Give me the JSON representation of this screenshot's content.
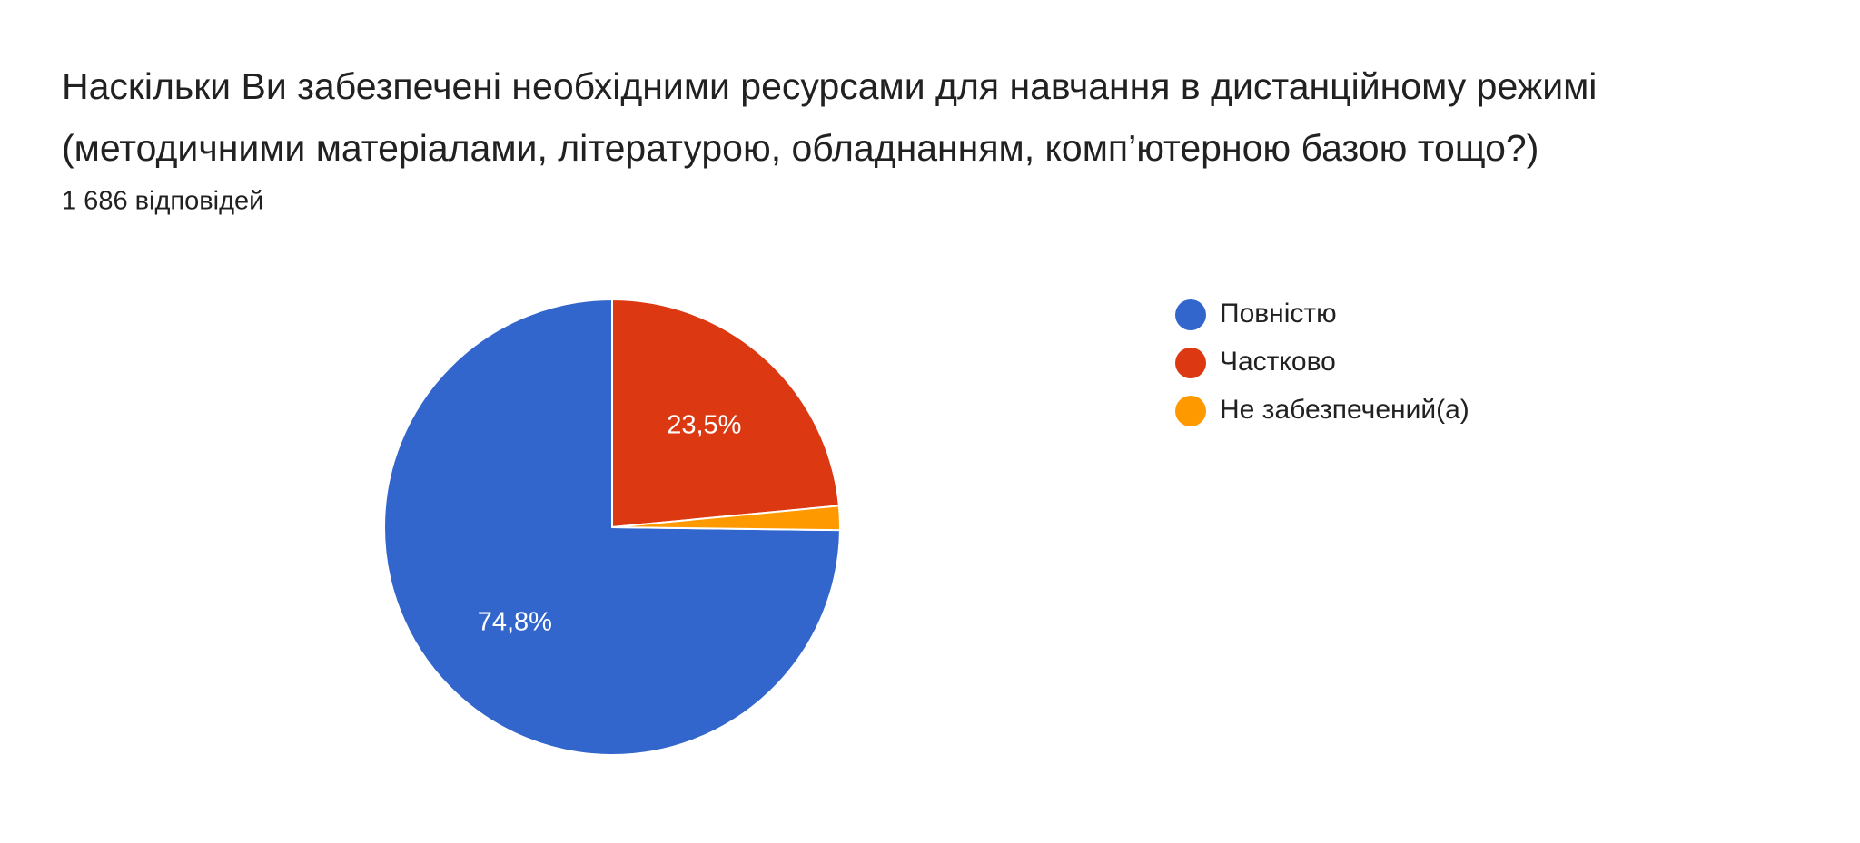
{
  "chart_data": {
    "type": "pie",
    "title": [
      "Наскільки Ви забезпечені необхідними ресурсами для навчання в дистанційному режимі",
      "(методичними матеріалами, літературою, обладнанням, комп’ютерною базою тощо?)"
    ],
    "subtitle": "1 686 відповідей",
    "categories": [
      "Повністю",
      "Частково",
      "Не забезпечений(а)"
    ],
    "values": [
      74.8,
      23.5,
      1.7
    ],
    "value_labels": [
      "74,8%",
      "23,5%",
      null
    ],
    "colors": [
      "#3366cc",
      "#dc3912",
      "#ff9900"
    ],
    "legend": "right"
  }
}
